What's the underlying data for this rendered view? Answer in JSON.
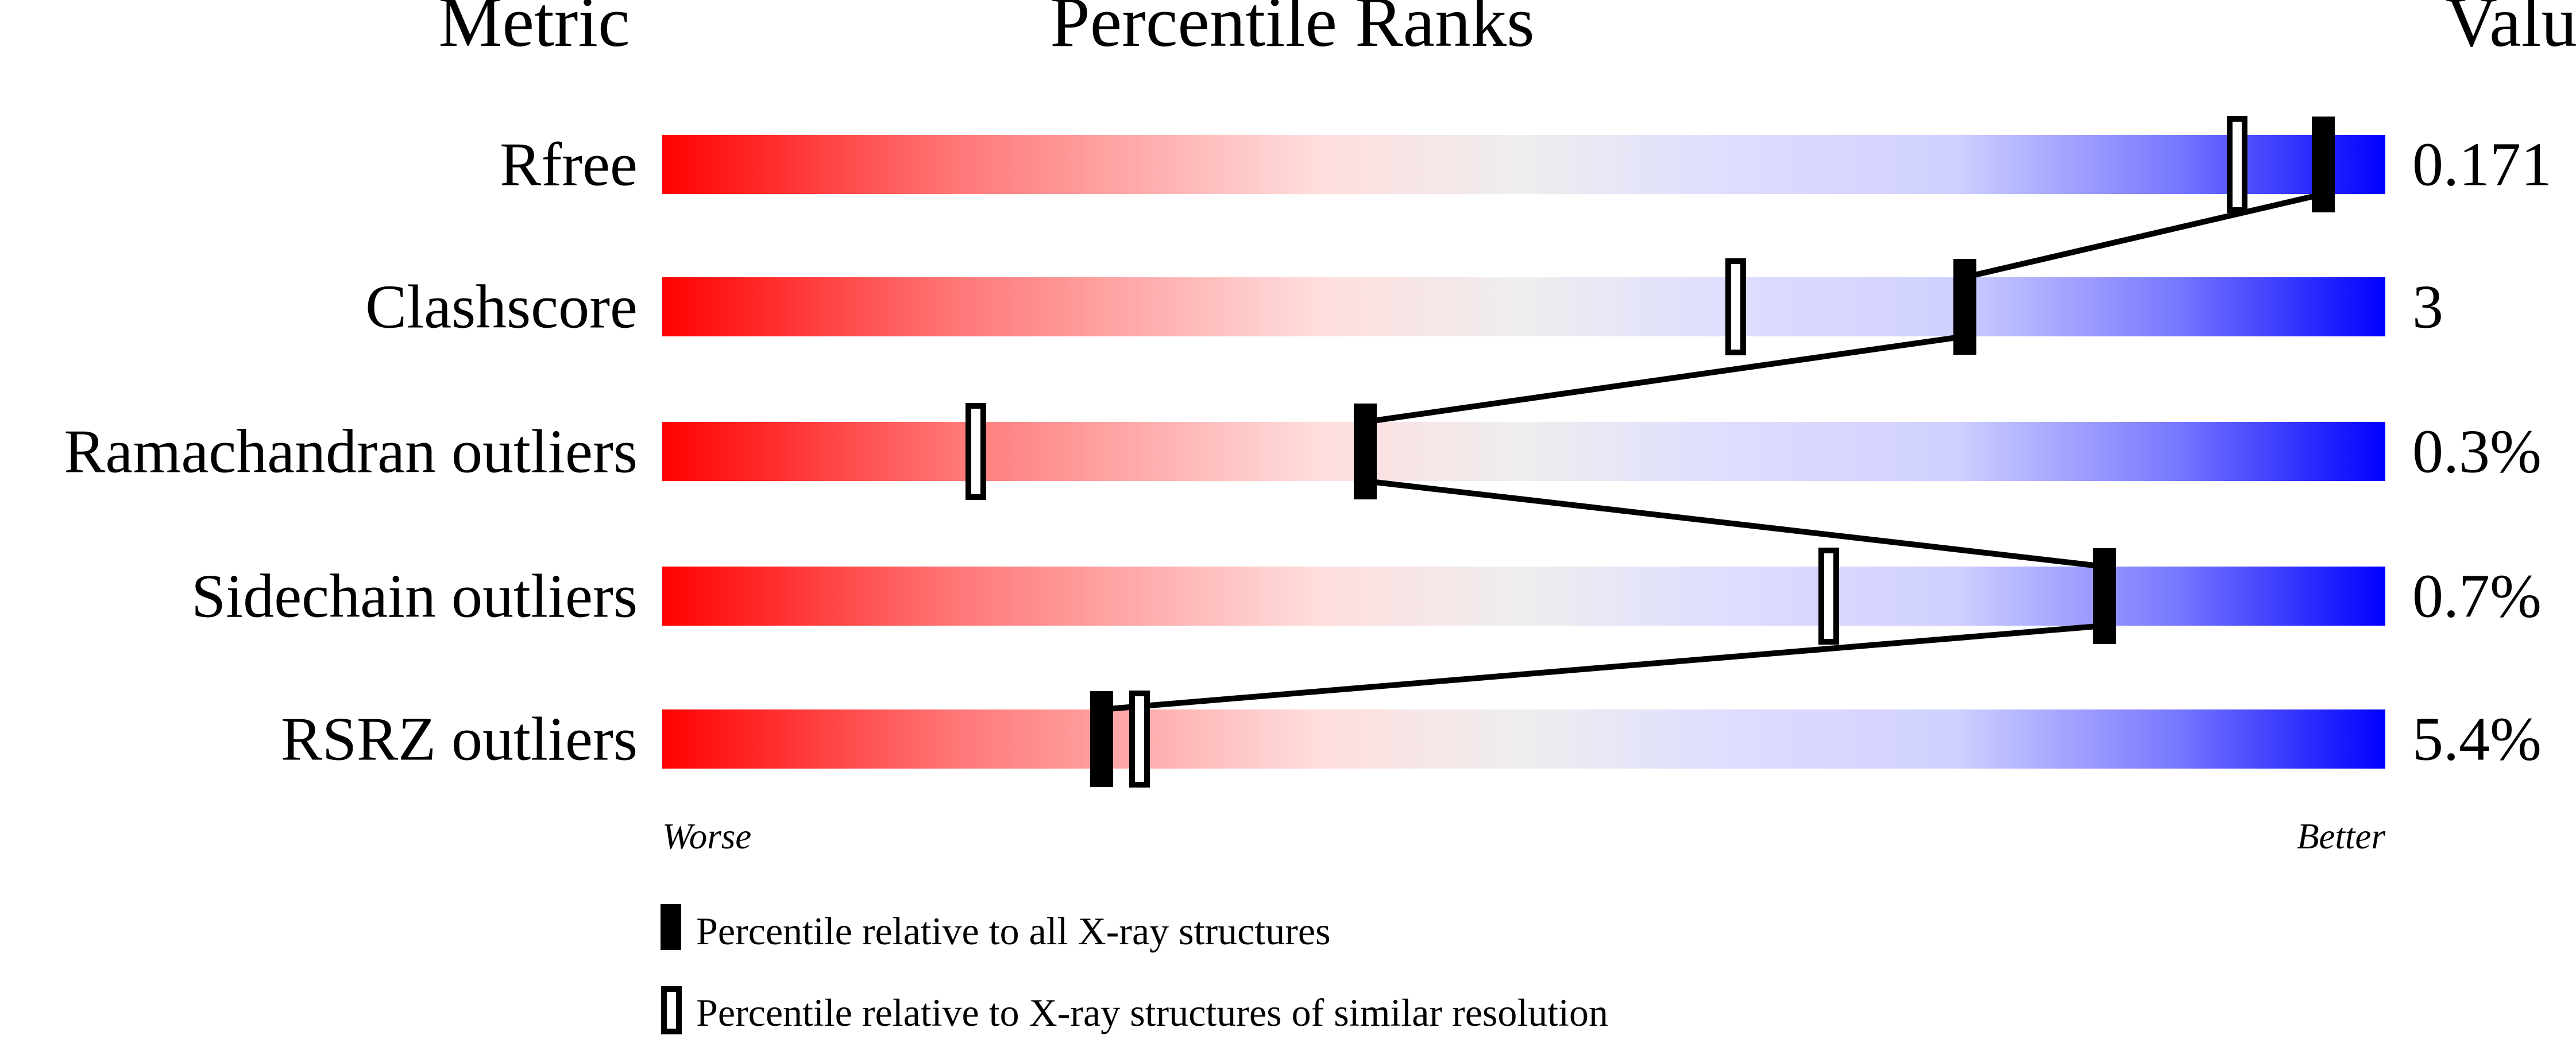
{
  "chart_data": {
    "type": "percentile-bar",
    "headers": {
      "metric": "Metric",
      "ranks": "Percentile Ranks",
      "value": "Value"
    },
    "xlim": [
      0,
      100
    ],
    "axis_labels": {
      "worse": "Worse",
      "better": "Better"
    },
    "rows": [
      {
        "metric": "Rfree",
        "value": "0.171",
        "percentile_all": 96.4,
        "percentile_similar": 91.4
      },
      {
        "metric": "Clashscore",
        "value": "3",
        "percentile_all": 75.6,
        "percentile_similar": 62.3
      },
      {
        "metric": "Ramachandran outliers",
        "value": "0.3%",
        "percentile_all": 40.8,
        "percentile_similar": 18.2
      },
      {
        "metric": "Sidechain outliers",
        "value": "0.7%",
        "percentile_all": 83.7,
        "percentile_similar": 67.7
      },
      {
        "metric": "RSRZ outliers",
        "value": "5.4%",
        "percentile_all": 25.5,
        "percentile_similar": 27.7
      }
    ],
    "legend": {
      "all": "Percentile relative to all X-ray structures",
      "similar": "Percentile relative to X-ray structures of similar resolution"
    },
    "colors": {
      "worse": "#ff0000",
      "middle": "#eeeeee",
      "better": "#0000ff",
      "marker": "#000000"
    }
  }
}
